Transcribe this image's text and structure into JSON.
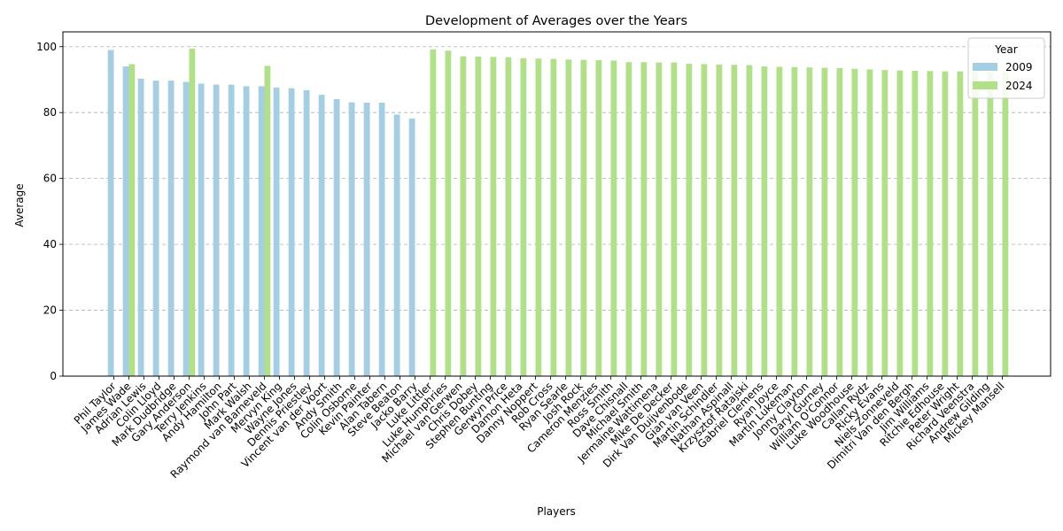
{
  "chart_data": {
    "type": "bar",
    "title": "Development of Averages over the Years",
    "xlabel": "Players",
    "ylabel": "Average",
    "ylim": [
      0,
      104.5
    ],
    "yticks": [
      0,
      20,
      40,
      60,
      80,
      100
    ],
    "grid": "y-dashed",
    "legend": {
      "title": "Year",
      "placement": "top-right"
    },
    "categories": [
      "Phil Taylor",
      "James Wade",
      "Adrian Lewis",
      "Colin Lloyd",
      "Mark Dudbridge",
      "Gary Anderson",
      "Terry Jenkins",
      "Andy Hamilton",
      "John Part",
      "Mark Walsh",
      "Raymond van Barneveld",
      "Mervyn King",
      "Wayne Jones",
      "Dennis Priestley",
      "Vincent van der Voort",
      "Andy Smith",
      "Colin Osborne",
      "Kevin Painter",
      "Alan Tabern",
      "Steve Beaton",
      "Jacko Barry",
      "Luke Littler",
      "Luke Humphries",
      "Michael van Gerwen",
      "Chris Dobey",
      "Stephen Bunting",
      "Gerwyn Price",
      "Damon Heta",
      "Danny Noppert",
      "Rob Cross",
      "Ryan Searle",
      "Josh Rock",
      "Cameron Menzies",
      "Ross Smith",
      "Dave Chisnall",
      "Michael Smith",
      "Jermaine Wattimena",
      "Mike De Decker",
      "Dirk Van Duijvenbode",
      "Gian van Veen",
      "Martin Schindler",
      "Nathan Aspinall",
      "Krzysztof Ratajski",
      "Gabriel Clemens",
      "Ryan Joyce",
      "Martin Lukeman",
      "Jonny Clayton",
      "Daryl Gurney",
      "William O'Connor",
      "Luke Woodhouse",
      "Callan Rydz",
      "Ricky Evans",
      "Niels Zonneveld",
      "Dimitri Van den Bergh",
      "Jim Williams",
      "Ritchie Edhouse",
      "Peter Wright",
      "Richard Veenstra",
      "Andrew Gilding",
      "Mickey Mansell"
    ],
    "series": [
      {
        "name": "2009",
        "color": "#a6cee3",
        "values": [
          99.0,
          94.0,
          90.3,
          89.7,
          89.7,
          89.3,
          88.8,
          88.5,
          88.5,
          88.0,
          88.0,
          87.6,
          87.4,
          86.8,
          85.4,
          84.1,
          83.1,
          83.0,
          83.0,
          79.4,
          78.2,
          null,
          null,
          null,
          null,
          null,
          null,
          null,
          null,
          null,
          null,
          null,
          null,
          null,
          null,
          null,
          null,
          null,
          null,
          null,
          null,
          null,
          null,
          null,
          null,
          null,
          null,
          null,
          null,
          null,
          null,
          null,
          null,
          null,
          null,
          null,
          null,
          null,
          null,
          null
        ]
      },
      {
        "name": "2024",
        "color": "#b2df8a",
        "values": [
          null,
          94.7,
          null,
          null,
          null,
          99.4,
          null,
          null,
          null,
          null,
          94.2,
          null,
          null,
          null,
          null,
          null,
          null,
          null,
          null,
          null,
          null,
          99.2,
          98.8,
          97.1,
          97.0,
          96.9,
          96.8,
          96.5,
          96.4,
          96.3,
          96.1,
          96.0,
          95.9,
          95.8,
          95.3,
          95.3,
          95.2,
          95.2,
          94.8,
          94.7,
          94.6,
          94.5,
          94.4,
          94.0,
          93.9,
          93.8,
          93.7,
          93.6,
          93.5,
          93.3,
          93.1,
          92.9,
          92.8,
          92.7,
          92.6,
          92.5,
          92.5,
          92.4,
          92.4,
          92.3
        ]
      }
    ]
  }
}
